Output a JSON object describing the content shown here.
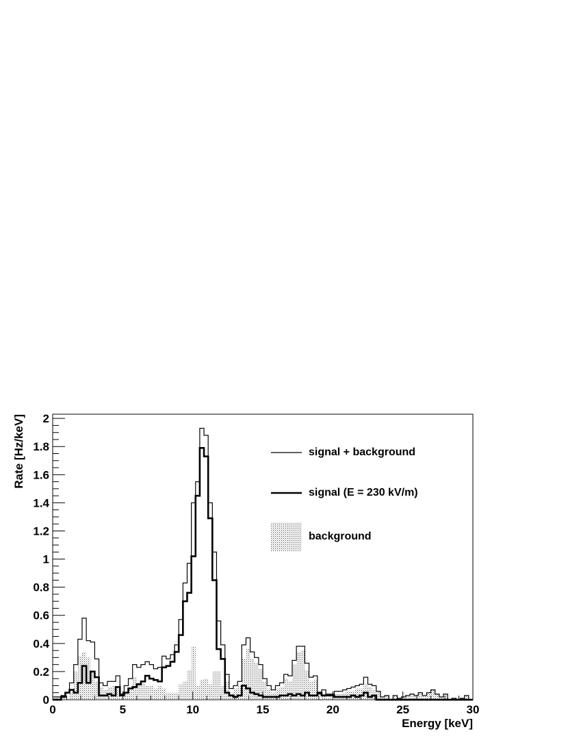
{
  "chart_data": {
    "type": "histogram",
    "x_label": "Energy [keV]",
    "y_label": "Rate [Hz/keV]",
    "xlim": [
      0,
      30
    ],
    "ylim": [
      0,
      2.03
    ],
    "xticks": [
      0,
      5,
      10,
      15,
      20,
      25,
      30
    ],
    "yticks": [
      0,
      0.2,
      0.4,
      0.6,
      0.8,
      1,
      1.2,
      1.4,
      1.6,
      1.8,
      2
    ],
    "bins": [
      0,
      0.3,
      0.6,
      0.9,
      1.2,
      1.5,
      1.8,
      2.1,
      2.4,
      2.7,
      3,
      3.3,
      3.6,
      3.9,
      4.2,
      4.5,
      4.8,
      5.1,
      5.4,
      5.7,
      6,
      6.3,
      6.6,
      6.9,
      7.2,
      7.5,
      7.8,
      8.1,
      8.4,
      8.7,
      9,
      9.3,
      9.6,
      9.9,
      10.2,
      10.5,
      10.8,
      11.1,
      11.4,
      11.7,
      12,
      12.3,
      12.6,
      12.9,
      13.2,
      13.5,
      13.8,
      14.1,
      14.4,
      14.7,
      15,
      15.3,
      15.6,
      15.9,
      16.2,
      16.5,
      16.8,
      17.1,
      17.4,
      17.7,
      18,
      18.3,
      18.6,
      18.9,
      19.2,
      19.5,
      19.8,
      20.1,
      20.4,
      20.7,
      21,
      21.3,
      21.6,
      21.9,
      22.2,
      22.5,
      22.8,
      23.1,
      23.4,
      23.7,
      24,
      24.3,
      24.6,
      24.9,
      25.2,
      25.5,
      25.8,
      26.1,
      26.4,
      26.7,
      27,
      27.3,
      27.6,
      27.9,
      28.2,
      28.5,
      28.8,
      29.1,
      29.4,
      29.7,
      30
    ],
    "series": [
      {
        "name": "signal + background",
        "color": "#000000",
        "linewidth": 1.2,
        "values": [
          0.02,
          0.02,
          0.03,
          0.05,
          0.12,
          0.25,
          0.43,
          0.58,
          0.42,
          0.41,
          0.29,
          0.12,
          0.1,
          0.13,
          0.13,
          0.17,
          0.04,
          0.1,
          0.15,
          0.25,
          0.23,
          0.25,
          0.27,
          0.25,
          0.22,
          0.23,
          0.31,
          0.29,
          0.32,
          0.39,
          0.57,
          0.83,
          0.97,
          1.4,
          1.55,
          1.93,
          1.88,
          1.4,
          1.05,
          0.56,
          0.39,
          0.18,
          0.08,
          0.1,
          0.13,
          0.39,
          0.44,
          0.34,
          0.3,
          0.25,
          0.15,
          0.1,
          0.07,
          0.1,
          0.12,
          0.18,
          0.17,
          0.28,
          0.38,
          0.38,
          0.26,
          0.16,
          0.17,
          0.04,
          0.07,
          0.04,
          0.04,
          0.06,
          0.06,
          0.07,
          0.08,
          0.09,
          0.1,
          0.11,
          0.16,
          0.11,
          0.1,
          0.06,
          0.02,
          0.03,
          0.0,
          0.03,
          0.01,
          0.02,
          0.03,
          0.04,
          0.03,
          0.05,
          0.03,
          0.05,
          0.07,
          0.04,
          0.02,
          0.04,
          0.0,
          0.01,
          0.0,
          0.01,
          0.03,
          0.0
        ]
      },
      {
        "name": "signal (E = 230 kV/m)",
        "color": "#000000",
        "linewidth": 2.6,
        "values": [
          0.0,
          0.0,
          0.02,
          0.05,
          0.07,
          0.05,
          0.12,
          0.24,
          0.12,
          0.2,
          0.16,
          0.03,
          0.03,
          0.04,
          0.03,
          0.09,
          0.03,
          0.05,
          0.08,
          0.09,
          0.11,
          0.13,
          0.17,
          0.15,
          0.14,
          0.13,
          0.23,
          0.24,
          0.27,
          0.34,
          0.46,
          0.7,
          0.76,
          1.02,
          1.45,
          1.79,
          1.73,
          1.29,
          0.85,
          0.36,
          0.29,
          0.05,
          0.03,
          0.02,
          0.03,
          0.1,
          0.08,
          0.05,
          0.04,
          0.03,
          0.02,
          0.02,
          0.02,
          0.02,
          0.03,
          0.03,
          0.04,
          0.03,
          0.04,
          0.03,
          0.05,
          0.03,
          0.03,
          0.05,
          0.03,
          0.03,
          0.03,
          0.02,
          0.02,
          0.02,
          0.02,
          0.03,
          0.02,
          0.03,
          0.05,
          0.02,
          0.03,
          0.0,
          0.0,
          0.0,
          0.0,
          0.0,
          0.0,
          0.0,
          0.0,
          0.0,
          0.0,
          0.0,
          0.0,
          0.0,
          0.0,
          0.0,
          0.0,
          0.0,
          0.0,
          0.0,
          0.0,
          0.0,
          0.0,
          0.0
        ]
      },
      {
        "name": "background",
        "color": "#555555",
        "fill": "dotted",
        "values": [
          0.02,
          0.02,
          0.01,
          0.0,
          0.05,
          0.2,
          0.31,
          0.34,
          0.3,
          0.21,
          0.13,
          0.09,
          0.07,
          0.09,
          0.1,
          0.08,
          0.01,
          0.05,
          0.07,
          0.16,
          0.12,
          0.12,
          0.1,
          0.1,
          0.08,
          0.1,
          0.08,
          0.05,
          0.05,
          0.05,
          0.11,
          0.13,
          0.21,
          0.38,
          0.1,
          0.14,
          0.15,
          0.11,
          0.2,
          0.2,
          0.1,
          0.13,
          0.05,
          0.08,
          0.1,
          0.29,
          0.36,
          0.29,
          0.26,
          0.22,
          0.13,
          0.08,
          0.05,
          0.08,
          0.09,
          0.15,
          0.13,
          0.25,
          0.34,
          0.35,
          0.21,
          0.13,
          0.14,
          0.0,
          0.04,
          0.01,
          0.01,
          0.04,
          0.04,
          0.05,
          0.06,
          0.06,
          0.08,
          0.08,
          0.11,
          0.09,
          0.07,
          0.06,
          0.02,
          0.03,
          0.0,
          0.03,
          0.01,
          0.02,
          0.03,
          0.04,
          0.03,
          0.05,
          0.03,
          0.05,
          0.07,
          0.04,
          0.02,
          0.04,
          0.0,
          0.01,
          0.0,
          0.01,
          0.03,
          0.0
        ]
      }
    ]
  }
}
